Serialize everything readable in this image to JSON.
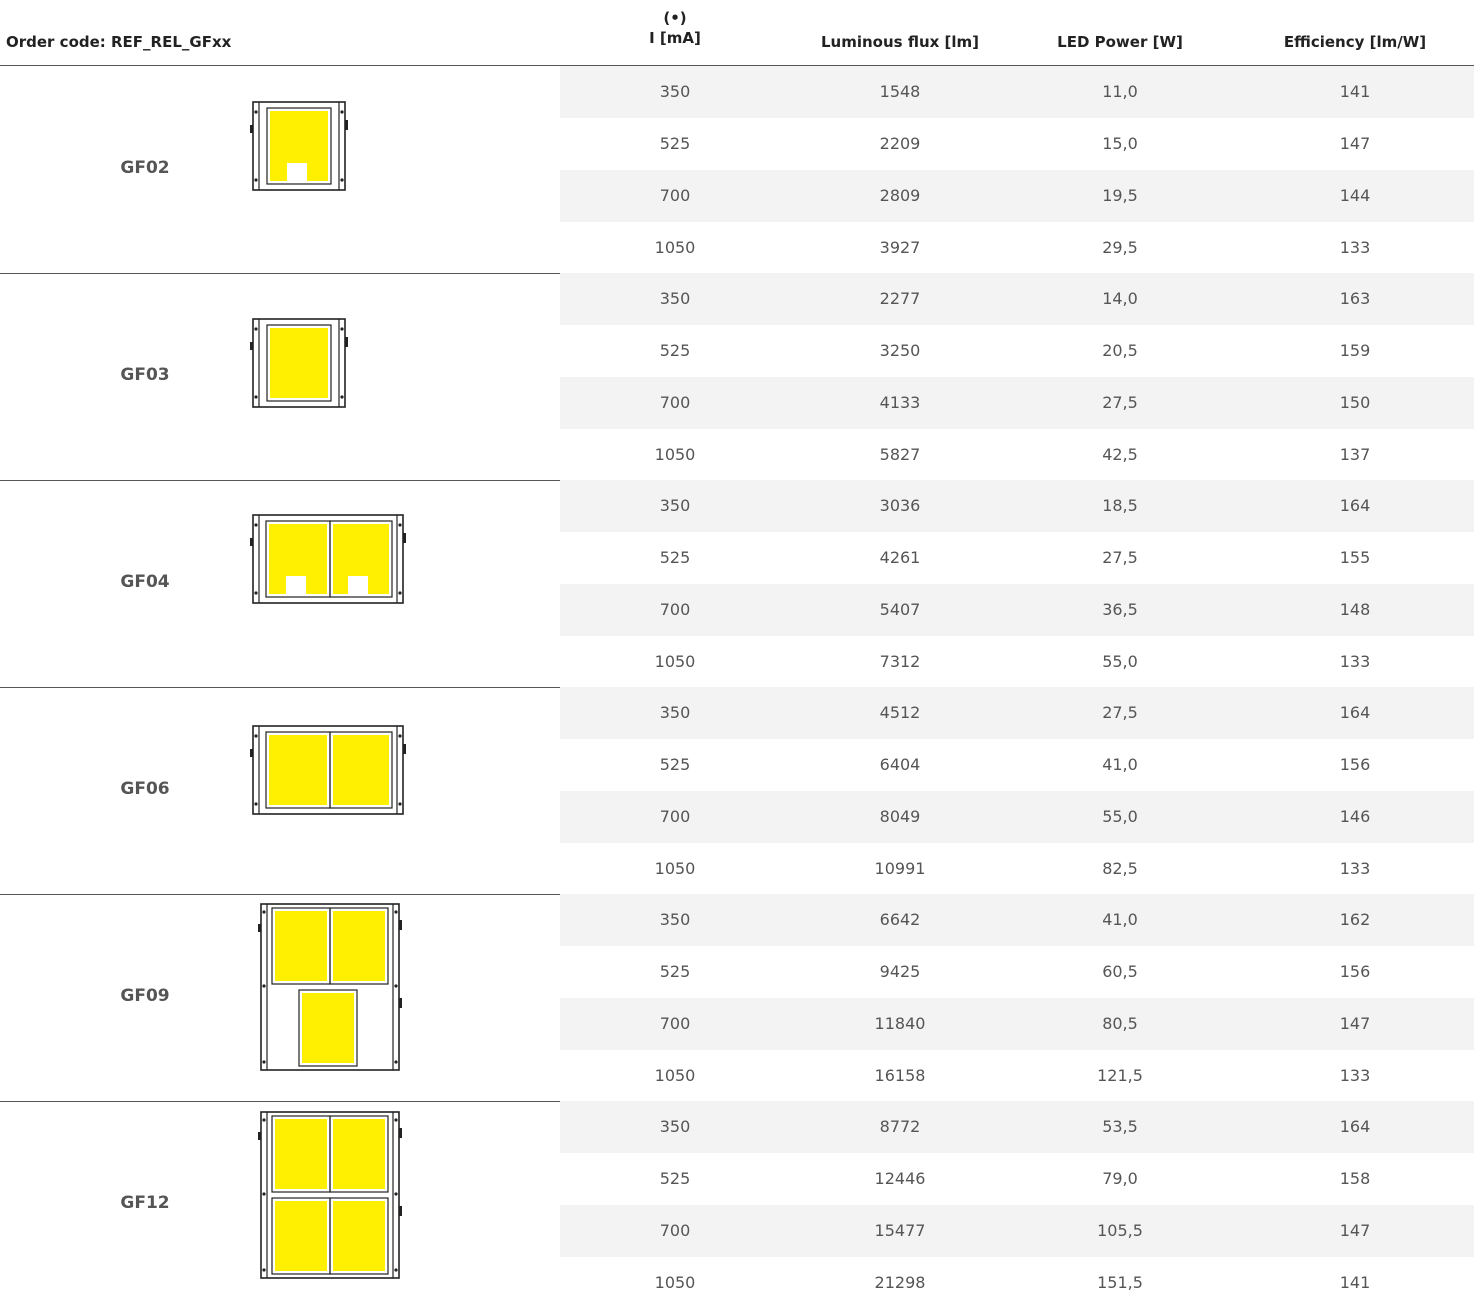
{
  "header": {
    "order_code": "Order code: REF_REL_GFxx",
    "current_note": "(•)",
    "current": "I [mA]",
    "flux": "Luminous flux [lm]",
    "power": "LED Power [W]",
    "efficiency": "Efficiency [lm/W]"
  },
  "colors": {
    "panel_yellow": "#ffef00",
    "row_shade": "#f3f3f3",
    "rule": "#555555"
  },
  "groups": [
    {
      "code": "GF02",
      "rows": [
        {
          "i": "350",
          "flux": "1548",
          "power": "11,0",
          "eff": "141"
        },
        {
          "i": "525",
          "flux": "2209",
          "power": "15,0",
          "eff": "147"
        },
        {
          "i": "700",
          "flux": "2809",
          "power": "19,5",
          "eff": "144"
        },
        {
          "i": "1050",
          "flux": "3927",
          "power": "29,5",
          "eff": "133"
        }
      ]
    },
    {
      "code": "GF03",
      "rows": [
        {
          "i": "350",
          "flux": "2277",
          "power": "14,0",
          "eff": "163"
        },
        {
          "i": "525",
          "flux": "3250",
          "power": "20,5",
          "eff": "159"
        },
        {
          "i": "700",
          "flux": "4133",
          "power": "27,5",
          "eff": "150"
        },
        {
          "i": "1050",
          "flux": "5827",
          "power": "42,5",
          "eff": "137"
        }
      ]
    },
    {
      "code": "GF04",
      "rows": [
        {
          "i": "350",
          "flux": "3036",
          "power": "18,5",
          "eff": "164"
        },
        {
          "i": "525",
          "flux": "4261",
          "power": "27,5",
          "eff": "155"
        },
        {
          "i": "700",
          "flux": "5407",
          "power": "36,5",
          "eff": "148"
        },
        {
          "i": "1050",
          "flux": "7312",
          "power": "55,0",
          "eff": "133"
        }
      ]
    },
    {
      "code": "GF06",
      "rows": [
        {
          "i": "350",
          "flux": "4512",
          "power": "27,5",
          "eff": "164"
        },
        {
          "i": "525",
          "flux": "6404",
          "power": "41,0",
          "eff": "156"
        },
        {
          "i": "700",
          "flux": "8049",
          "power": "55,0",
          "eff": "146"
        },
        {
          "i": "1050",
          "flux": "10991",
          "power": "82,5",
          "eff": "133"
        }
      ]
    },
    {
      "code": "GF09",
      "rows": [
        {
          "i": "350",
          "flux": "6642",
          "power": "41,0",
          "eff": "162"
        },
        {
          "i": "525",
          "flux": "9425",
          "power": "60,5",
          "eff": "156"
        },
        {
          "i": "700",
          "flux": "11840",
          "power": "80,5",
          "eff": "147"
        },
        {
          "i": "1050",
          "flux": "16158",
          "power": "121,5",
          "eff": "133"
        }
      ]
    },
    {
      "code": "GF12",
      "rows": [
        {
          "i": "350",
          "flux": "8772",
          "power": "53,5",
          "eff": "164"
        },
        {
          "i": "525",
          "flux": "12446",
          "power": "79,0",
          "eff": "158"
        },
        {
          "i": "700",
          "flux": "15477",
          "power": "105,5",
          "eff": "147"
        },
        {
          "i": "1050",
          "flux": "21298",
          "power": "151,5",
          "eff": "141"
        }
      ]
    }
  ]
}
